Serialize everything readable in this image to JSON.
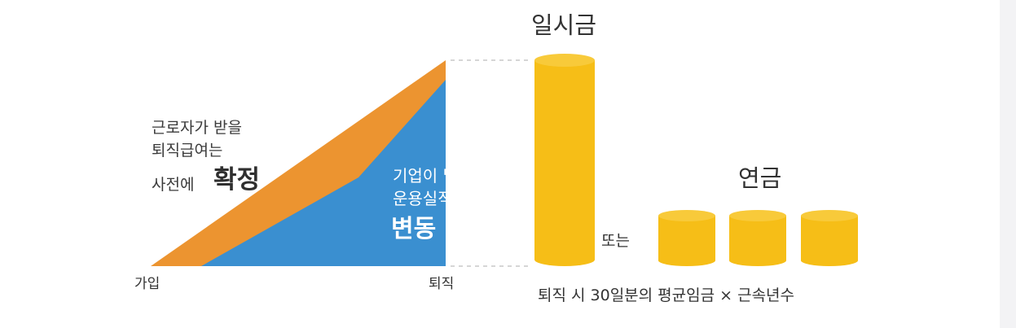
{
  "left": {
    "defined_benefit_line1": "근로자가 받을",
    "defined_benefit_line2": "퇴직급여는",
    "defined_benefit_line3_prefix": "사전에",
    "defined_benefit_line3_emph": "확정",
    "contribution_line1": "기업이 낼 부담금은",
    "contribution_line2": "운용실적에 따라",
    "contribution_emph": "변동",
    "axis_start": "가입",
    "axis_end": "퇴직"
  },
  "right": {
    "lump_sum_label": "일시금",
    "or_label": "또는",
    "annuity_label": "연금",
    "formula": "퇴직 시 30일분의 평균임금 × 근속년수"
  },
  "colors": {
    "orange": "#ec9430",
    "blue": "#3a8fd0",
    "gold": "#f6be17",
    "gold_top": "#f8ca3a",
    "dash": "#c8c8c8"
  }
}
